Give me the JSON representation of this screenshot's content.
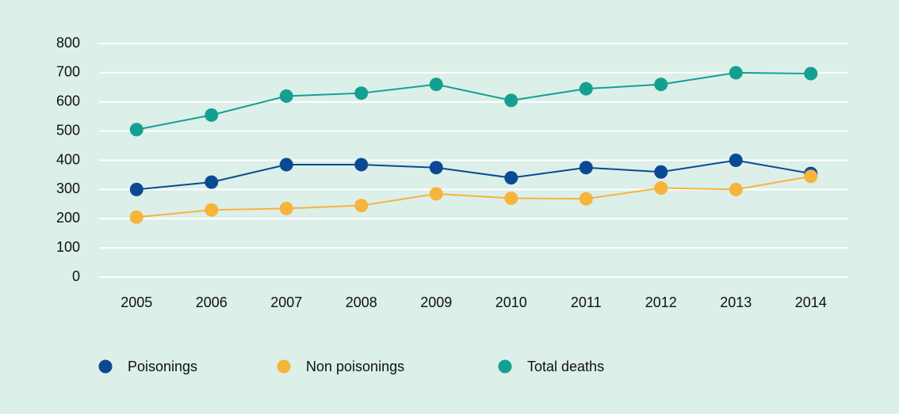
{
  "chart_data": {
    "type": "line",
    "categories": [
      "2005",
      "2006",
      "2007",
      "2008",
      "2009",
      "2010",
      "2011",
      "2012",
      "2013",
      "2014"
    ],
    "series": [
      {
        "name": "Poisonings",
        "color": "#0b4a93",
        "values": [
          300,
          325,
          385,
          385,
          375,
          340,
          375,
          360,
          400,
          355
        ]
      },
      {
        "name": "Non poisonings",
        "color": "#f6b43c",
        "values": [
          205,
          230,
          235,
          245,
          285,
          270,
          268,
          305,
          300,
          345
        ]
      },
      {
        "name": "Total deaths",
        "color": "#14a091",
        "values": [
          505,
          555,
          620,
          630,
          660,
          605,
          645,
          660,
          700,
          697
        ]
      }
    ],
    "ylim": [
      0,
      800
    ],
    "yticks": [
      0,
      100,
      200,
      300,
      400,
      500,
      600,
      700,
      800
    ],
    "grid": true,
    "legend": "bottom"
  }
}
